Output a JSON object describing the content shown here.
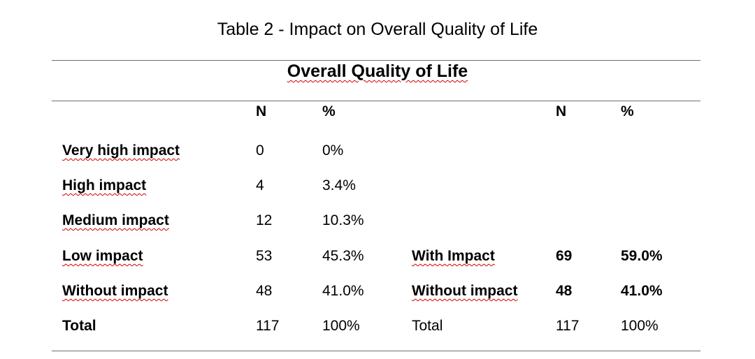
{
  "caption": "Table 2 - Impact on Overall Quality of Life",
  "table": {
    "heading": "Overall Quality of Life",
    "headers": {
      "n1": "N",
      "p1": "%",
      "n2": "N",
      "p2": "%"
    },
    "rows": [
      {
        "label": "Very high impact",
        "n": "0",
        "pct": "0%",
        "label2": "",
        "n2": "",
        "pct2": ""
      },
      {
        "label": "High impact",
        "n": "4",
        "pct": "3.4%",
        "label2": "",
        "n2": "",
        "pct2": ""
      },
      {
        "label": "Medium impact",
        "n": "12",
        "pct": "10.3%",
        "label2": "",
        "n2": "",
        "pct2": ""
      },
      {
        "label": "Low impact",
        "n": "53",
        "pct": "45.3%",
        "label2": "With Impact",
        "n2": "69",
        "pct2": "59.0%"
      },
      {
        "label": "Without impact",
        "n": "48",
        "pct": "41.0%",
        "label2": "Without impact",
        "n2": "48",
        "pct2": "41.0%"
      },
      {
        "label": "Total",
        "n": "117",
        "pct": "100%",
        "label2": "Total",
        "n2": "117",
        "pct2": "100%"
      }
    ]
  }
}
